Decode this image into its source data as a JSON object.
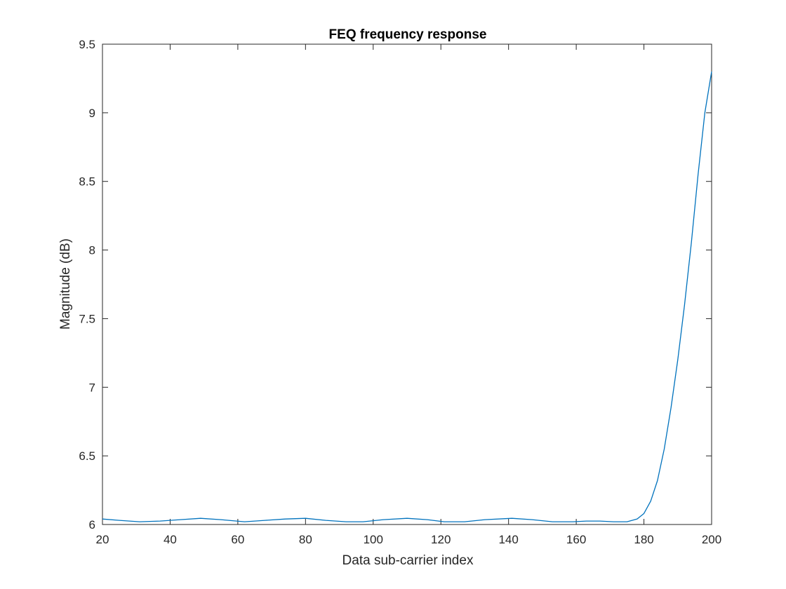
{
  "chart_data": {
    "type": "line",
    "title": "FEQ frequency response",
    "xlabel": "Data sub-carrier index",
    "ylabel": "Magnitude (dB)",
    "xlim": [
      20,
      200
    ],
    "ylim": [
      6,
      9.5
    ],
    "xticks": [
      "20",
      "40",
      "60",
      "80",
      "100",
      "120",
      "140",
      "160",
      "180",
      "200"
    ],
    "yticks": [
      "6",
      "6.5",
      "7",
      "7.5",
      "8",
      "8.5",
      "9",
      "9.5"
    ],
    "grid": false,
    "line_color": "#0072BD",
    "series": [
      {
        "x": [
          20,
          25,
          31,
          37,
          43,
          49,
          55,
          62,
          68,
          74,
          80,
          86,
          92,
          97,
          103,
          110,
          116,
          121,
          127,
          133,
          141,
          147,
          153,
          159,
          163,
          167,
          171,
          175,
          178,
          180,
          182,
          184,
          186,
          188,
          190,
          192,
          194,
          196,
          198,
          200
        ],
        "values": [
          6.04,
          6.03,
          6.02,
          6.025,
          6.035,
          6.045,
          6.035,
          6.02,
          6.03,
          6.04,
          6.045,
          6.03,
          6.02,
          6.02,
          6.035,
          6.045,
          6.035,
          6.02,
          6.02,
          6.035,
          6.045,
          6.035,
          6.02,
          6.02,
          6.025,
          6.025,
          6.02,
          6.02,
          6.04,
          6.08,
          6.17,
          6.32,
          6.55,
          6.85,
          7.2,
          7.6,
          8.05,
          8.55,
          9.0,
          9.3
        ]
      }
    ]
  }
}
